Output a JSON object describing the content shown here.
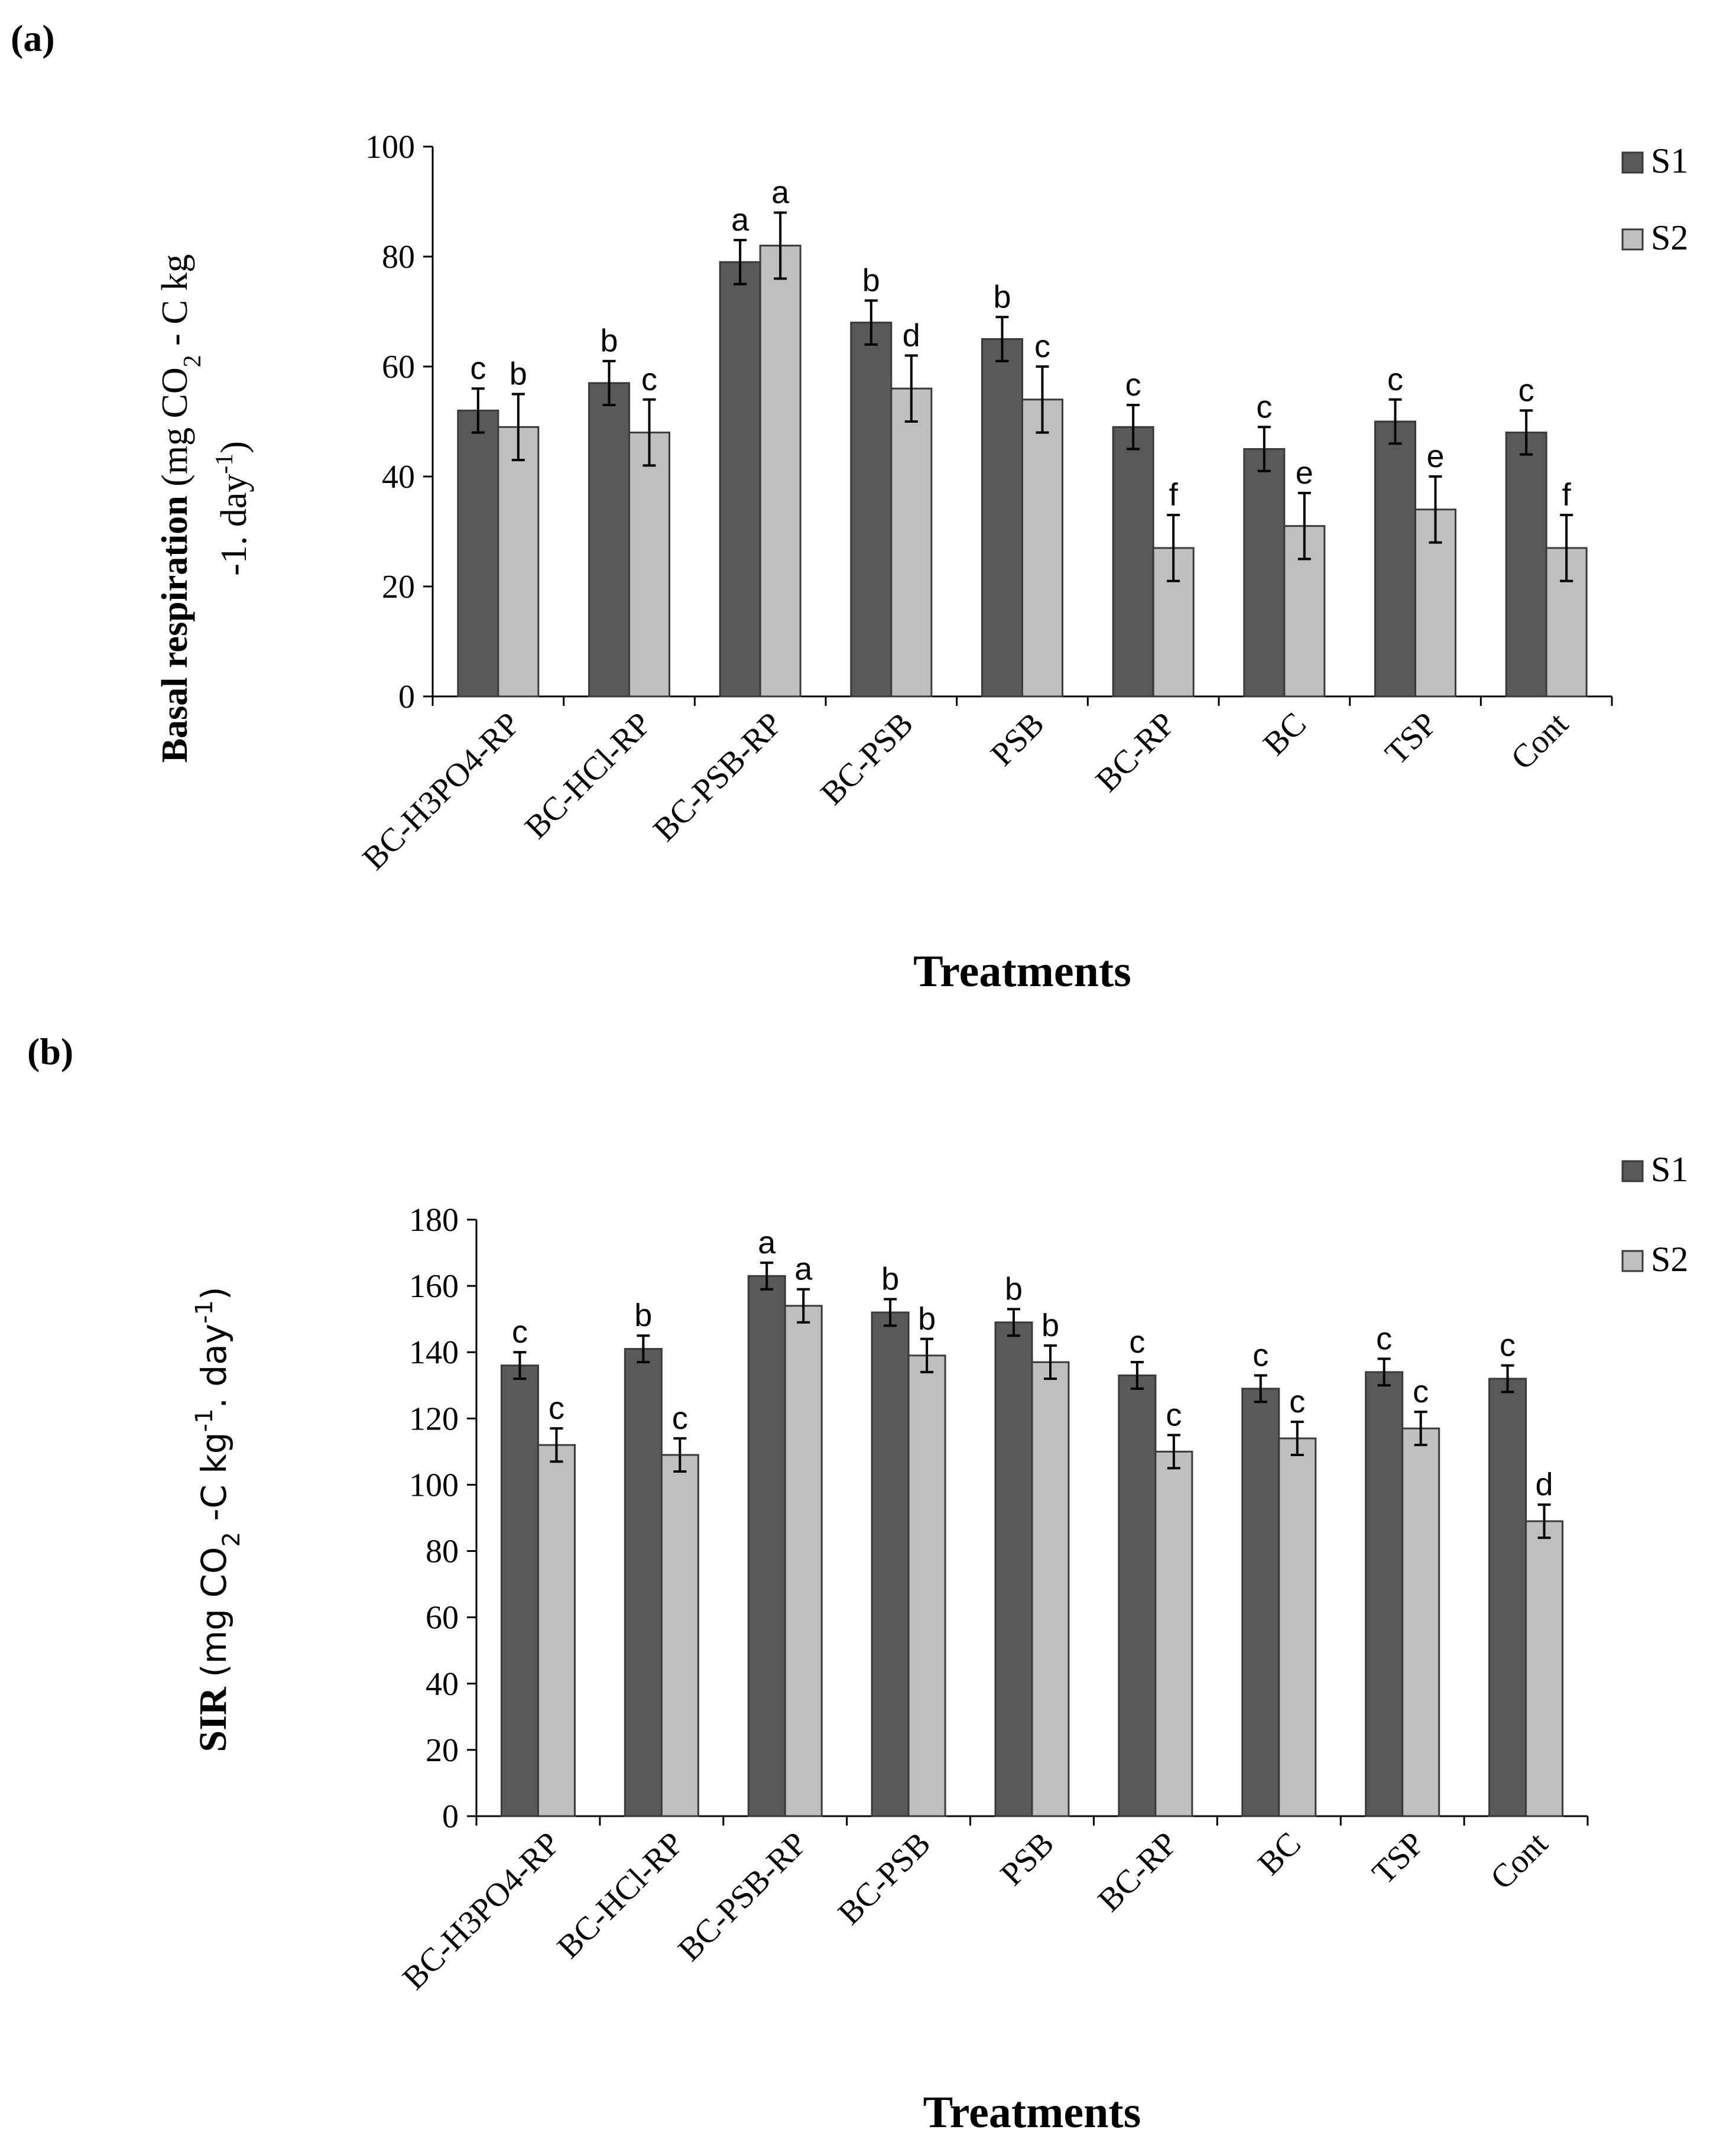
{
  "panel_a_label": "(a)",
  "panel_b_label": "(b)",
  "chart_data": [
    {
      "type": "bar",
      "title": "",
      "ylabel_bold": "Basal respiration",
      "ylabel_line1": "(mg CO",
      "ylabel_sub": "2",
      "ylabel_line1_end": " - C kg",
      "ylabel_line2": "-1. day",
      "ylabel_line2_sup": "-1",
      "ylabel_line2_end": ")",
      "xlabel": "Treatments",
      "ylim": [
        0,
        100
      ],
      "yticks": [
        "0",
        "20",
        "40",
        "60",
        "80",
        "100"
      ],
      "categories": [
        "BC-H3PO4-RP",
        "BC-HCl-RP",
        "BC-PSB-RP",
        "BC-PSB",
        "PSB",
        "BC-RP",
        "BC",
        "TSP",
        "Cont"
      ],
      "series": [
        {
          "name": "S1",
          "color": "#595959",
          "values": [
            52,
            57,
            79,
            68,
            65,
            49,
            45,
            50,
            48
          ],
          "errors": [
            4,
            4,
            4,
            4,
            4,
            4,
            4,
            4,
            4
          ],
          "labels": [
            "c",
            "b",
            "a",
            "b",
            "b",
            "c",
            "c",
            "c",
            "c"
          ]
        },
        {
          "name": "S2",
          "color": "#bfbfbf",
          "values": [
            49,
            48,
            82,
            56,
            54,
            27,
            31,
            34,
            27
          ],
          "errors": [
            6,
            6,
            6,
            6,
            6,
            6,
            6,
            6,
            6
          ],
          "labels": [
            "b",
            "c",
            "a",
            "d",
            "c",
            "f",
            "e",
            "e",
            "f"
          ]
        }
      ]
    },
    {
      "type": "bar",
      "title": "",
      "ylabel_bold": "SIR",
      "ylabel_line1": "(mg CO",
      "ylabel_sub": "2",
      "ylabel_line1_end": " -C kg",
      "ylabel_sup1": "-1",
      "ylabel_mid": ". day",
      "ylabel_sup2": "-1",
      "ylabel_end": ")",
      "xlabel": "Treatments",
      "ylim": [
        0,
        180
      ],
      "yticks": [
        "0",
        "20",
        "40",
        "60",
        "80",
        "100",
        "120",
        "140",
        "160",
        "180"
      ],
      "categories": [
        "BC-H3PO4-RP",
        "BC-HCl-RP",
        "BC-PSB-RP",
        "BC-PSB",
        "PSB",
        "BC-RP",
        "BC",
        "TSP",
        "Cont"
      ],
      "series": [
        {
          "name": "S1",
          "color": "#595959",
          "values": [
            136,
            141,
            163,
            152,
            149,
            133,
            129,
            134,
            132
          ],
          "errors": [
            4,
            4,
            4,
            4,
            4,
            4,
            4,
            4,
            4
          ],
          "labels": [
            "c",
            "b",
            "a",
            "b",
            "b",
            "c",
            "c",
            "c",
            "c"
          ]
        },
        {
          "name": "S2",
          "color": "#bfbfbf",
          "values": [
            112,
            109,
            154,
            139,
            137,
            110,
            114,
            117,
            89
          ],
          "errors": [
            5,
            5,
            5,
            5,
            5,
            5,
            5,
            5,
            5
          ],
          "labels": [
            "c",
            "c",
            "a",
            "b",
            "b",
            "c",
            "c",
            "c",
            "d"
          ]
        }
      ]
    }
  ]
}
